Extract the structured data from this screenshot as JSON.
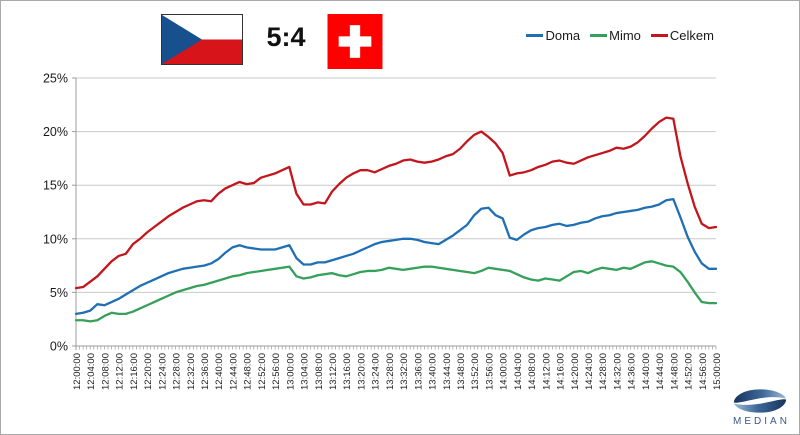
{
  "header": {
    "score": "5:4",
    "home_flag_icon": "czech-republic-flag",
    "away_flag_icon": "switzerland-flag",
    "flag_colors": {
      "czech_white": "#FFFFFF",
      "czech_red": "#D7141A",
      "czech_blue": "#17508D",
      "swiss_red": "#FF0000",
      "swiss_cross": "#FFFFFF"
    }
  },
  "footer": {
    "logo_text": "MEDIAN",
    "logo_colors": {
      "navy": "#16355D",
      "light_blue": "#9DBBD6",
      "text_blue": "#3A5A85"
    }
  },
  "chart_data": {
    "type": "line",
    "title": "",
    "xlabel": "",
    "ylabel": "",
    "ylim": [
      0,
      25
    ],
    "y_unit": "%",
    "y_ticks": [
      "0%",
      "5%",
      "10%",
      "15%",
      "20%",
      "25%"
    ],
    "grid": "horizontal",
    "legend_position": "top-right",
    "x_range_minutes": [
      0,
      180
    ],
    "x_label_interval_minutes": 4,
    "x_minor_tick_minutes": 1,
    "point_interval_minutes": 2,
    "x_labels": [
      "12:00:00",
      "12:04:00",
      "12:08:00",
      "12:12:00",
      "12:16:00",
      "12:20:00",
      "12:24:00",
      "12:28:00",
      "12:32:00",
      "12:36:00",
      "12:40:00",
      "12:44:00",
      "12:48:00",
      "12:52:00",
      "12:56:00",
      "13:00:00",
      "13:04:00",
      "13:08:00",
      "13:12:00",
      "13:16:00",
      "13:20:00",
      "13:24:00",
      "13:28:00",
      "13:32:00",
      "13:36:00",
      "13:40:00",
      "13:44:00",
      "13:48:00",
      "13:52:00",
      "13:56:00",
      "14:00:00",
      "14:04:00",
      "14:08:00",
      "14:12:00",
      "14:16:00",
      "14:20:00",
      "14:24:00",
      "14:28:00",
      "14:32:00",
      "14:36:00",
      "14:40:00",
      "14:44:00",
      "14:48:00",
      "14:52:00",
      "14:56:00",
      "15:00:00"
    ],
    "series": [
      {
        "name": "Doma",
        "color": "#1F6FB5",
        "values": [
          3.0,
          3.1,
          3.3,
          3.9,
          3.8,
          4.1,
          4.4,
          4.8,
          5.2,
          5.6,
          5.9,
          6.2,
          6.5,
          6.8,
          7.0,
          7.2,
          7.3,
          7.4,
          7.5,
          7.7,
          8.1,
          8.7,
          9.2,
          9.4,
          9.2,
          9.1,
          9.0,
          9.0,
          9.0,
          9.2,
          9.4,
          8.2,
          7.6,
          7.6,
          7.8,
          7.8,
          8.0,
          8.2,
          8.4,
          8.6,
          8.9,
          9.2,
          9.5,
          9.7,
          9.8,
          9.9,
          10.0,
          10.0,
          9.9,
          9.7,
          9.6,
          9.5,
          9.9,
          10.3,
          10.8,
          11.3,
          12.2,
          12.8,
          12.9,
          12.2,
          11.9,
          10.1,
          9.9,
          10.4,
          10.8,
          11.0,
          11.1,
          11.3,
          11.4,
          11.2,
          11.3,
          11.5,
          11.6,
          11.9,
          12.1,
          12.2,
          12.4,
          12.5,
          12.6,
          12.7,
          12.9,
          13.0,
          13.2,
          13.6,
          13.7,
          12.0,
          10.2,
          8.8,
          7.7,
          7.2,
          7.2
        ]
      },
      {
        "name": "Mimo",
        "color": "#35A05A",
        "values": [
          2.4,
          2.4,
          2.3,
          2.4,
          2.8,
          3.1,
          3.0,
          3.0,
          3.2,
          3.5,
          3.8,
          4.1,
          4.4,
          4.7,
          5.0,
          5.2,
          5.4,
          5.6,
          5.7,
          5.9,
          6.1,
          6.3,
          6.5,
          6.6,
          6.8,
          6.9,
          7.0,
          7.1,
          7.2,
          7.3,
          7.4,
          6.5,
          6.3,
          6.4,
          6.6,
          6.7,
          6.8,
          6.6,
          6.5,
          6.7,
          6.9,
          7.0,
          7.0,
          7.1,
          7.3,
          7.2,
          7.1,
          7.2,
          7.3,
          7.4,
          7.4,
          7.3,
          7.2,
          7.1,
          7.0,
          6.9,
          6.8,
          7.0,
          7.3,
          7.2,
          7.1,
          7.0,
          6.7,
          6.4,
          6.2,
          6.1,
          6.3,
          6.2,
          6.1,
          6.5,
          6.9,
          7.0,
          6.8,
          7.1,
          7.3,
          7.2,
          7.1,
          7.3,
          7.2,
          7.5,
          7.8,
          7.9,
          7.7,
          7.5,
          7.4,
          6.9,
          6.0,
          5.0,
          4.1,
          4.0,
          4.0
        ]
      },
      {
        "name": "Celkem",
        "color": "#C3161C",
        "values": [
          5.4,
          5.5,
          6.0,
          6.5,
          7.2,
          7.9,
          8.4,
          8.6,
          9.5,
          10.0,
          10.6,
          11.1,
          11.6,
          12.1,
          12.5,
          12.9,
          13.2,
          13.5,
          13.6,
          13.5,
          14.2,
          14.7,
          15.0,
          15.3,
          15.1,
          15.2,
          15.7,
          15.9,
          16.1,
          16.4,
          16.7,
          14.2,
          13.2,
          13.2,
          13.4,
          13.3,
          14.4,
          15.1,
          15.7,
          16.1,
          16.4,
          16.4,
          16.2,
          16.5,
          16.8,
          17.0,
          17.3,
          17.4,
          17.2,
          17.1,
          17.2,
          17.4,
          17.7,
          17.9,
          18.4,
          19.1,
          19.7,
          20.0,
          19.5,
          18.9,
          18.0,
          15.9,
          16.1,
          16.2,
          16.4,
          16.7,
          16.9,
          17.2,
          17.3,
          17.1,
          17.0,
          17.3,
          17.6,
          17.8,
          18.0,
          18.2,
          18.5,
          18.4,
          18.6,
          19.0,
          19.6,
          20.3,
          20.9,
          21.3,
          21.2,
          17.7,
          15.2,
          13.0,
          11.4,
          11.0,
          11.1
        ]
      }
    ]
  }
}
